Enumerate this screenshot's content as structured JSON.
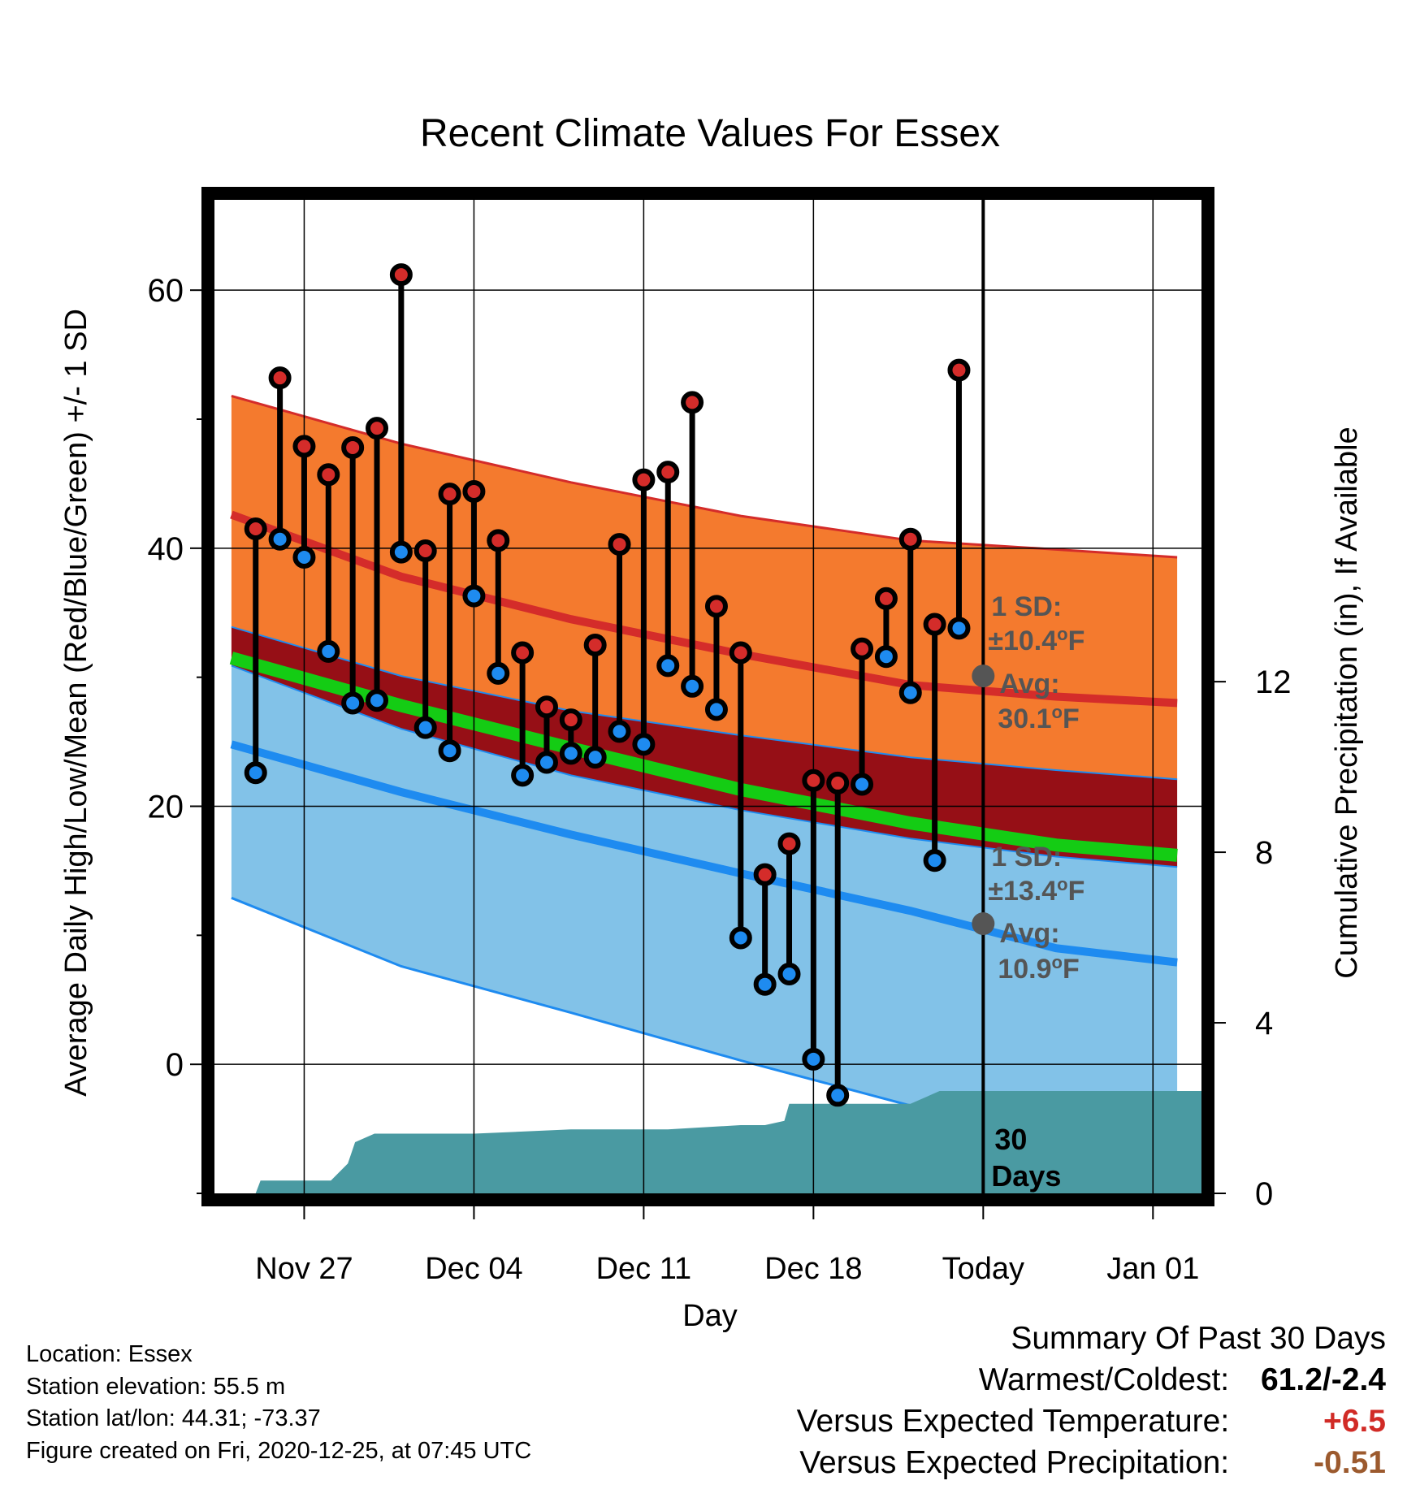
{
  "title": "Recent Climate Values For Essex",
  "chart_data": {
    "type": "line",
    "title": "Recent Climate Values For Essex",
    "xlabel": "Day",
    "ylabel": "Average Daily High/Low/Mean (Red/Blue/Green) +/- 1 SD",
    "y2label": "Cumulative Precipitation (in), If Available",
    "xticks": [
      "Nov 27",
      "Dec 04",
      "Dec 11",
      "Dec 18",
      "Today",
      "Jan 01"
    ],
    "xtick_positions": [
      27,
      34,
      41,
      48,
      55,
      62
    ],
    "x_note": "x = day index; Nov 24 = 24, Dec 01 = 31, Dec 25 (Today) = 55",
    "xlim": [
      23.3,
      64.0
    ],
    "ylim": [
      -10,
      67
    ],
    "yticks": [
      0,
      20,
      40,
      60
    ],
    "y2lim": [
      0,
      23.3
    ],
    "y2ticks": [
      0,
      4,
      8,
      12
    ],
    "grid": true,
    "colors": {
      "high_band": "#f47a2e",
      "high_line": "#d42c2a",
      "overlap_band": "#960f16",
      "mean_line": "#14cc14",
      "low_band": "#82c2e8",
      "low_line": "#1e8bf0",
      "precip": "#4a9aa2",
      "high_marker": "#d42c2a",
      "low_marker": "#1e8bf0",
      "sd_text": "#555555"
    },
    "normals": {
      "x": [
        24,
        31,
        38,
        45,
        52,
        58,
        63
      ],
      "high_avg": [
        42.6,
        37.8,
        34.5,
        31.8,
        29.4,
        28.5,
        28.0
      ],
      "high_upper": [
        51.8,
        48.1,
        45.1,
        42.5,
        40.6,
        39.9,
        39.3
      ],
      "high_lower": [
        33.9,
        30.1,
        27.4,
        25.5,
        23.8,
        22.8,
        22.1
      ],
      "mean_avg": [
        31.5,
        27.8,
        24.5,
        21.3,
        18.7,
        17.0,
        16.2
      ],
      "low_avg": [
        24.8,
        21.1,
        17.8,
        14.8,
        11.9,
        9.0,
        7.9
      ],
      "low_upper": [
        30.9,
        26.0,
        22.4,
        19.7,
        17.5,
        16.1,
        15.3
      ],
      "low_lower": [
        12.9,
        7.6,
        4.0,
        0.3,
        -3.2,
        -5.2,
        -6.2
      ]
    },
    "series": [
      {
        "name": "Daily High",
        "x": [
          25,
          26,
          27,
          28,
          29,
          30,
          31,
          32,
          33,
          34,
          35,
          36,
          37,
          38,
          39,
          40,
          41,
          42,
          43,
          44,
          45,
          46,
          47,
          48,
          49,
          50,
          51,
          52,
          53,
          54
        ],
        "values": [
          41.5,
          53.2,
          47.9,
          45.7,
          47.8,
          49.3,
          61.2,
          39.8,
          44.2,
          44.4,
          40.6,
          31.9,
          27.7,
          26.7,
          32.5,
          40.3,
          45.3,
          45.9,
          51.3,
          35.5,
          31.9,
          14.7,
          17.1,
          22.0,
          21.8,
          32.2,
          36.1,
          40.7,
          34.1,
          53.8
        ]
      },
      {
        "name": "Daily Low",
        "x": [
          25,
          26,
          27,
          28,
          29,
          30,
          31,
          32,
          33,
          34,
          35,
          36,
          37,
          38,
          39,
          40,
          41,
          42,
          43,
          44,
          45,
          46,
          47,
          48,
          49,
          50,
          51,
          52,
          53,
          54
        ],
        "values": [
          22.6,
          40.7,
          39.3,
          32.0,
          28.0,
          28.2,
          39.7,
          26.1,
          24.3,
          36.3,
          30.3,
          22.4,
          23.4,
          24.1,
          23.8,
          25.8,
          24.8,
          30.9,
          29.3,
          27.5,
          9.8,
          6.2,
          7.0,
          0.4,
          -2.4,
          21.7,
          31.6,
          28.8,
          15.8,
          33.8
        ]
      },
      {
        "name": "Cumulative Precipitation",
        "x": [
          24.4,
          25.0,
          25.2,
          26.8,
          27.9,
          28.1,
          28.8,
          29.1,
          29.9,
          30.2,
          34.0,
          38.0,
          42.0,
          45.0,
          46.0,
          46.8,
          47.0,
          52.0,
          52.8,
          53.2,
          64.0
        ],
        "values": [
          0,
          0.0,
          0.3,
          0.3,
          0.3,
          0.3,
          0.7,
          1.2,
          1.4,
          1.4,
          1.4,
          1.5,
          1.5,
          1.6,
          1.6,
          1.7,
          2.1,
          2.1,
          2.3,
          2.4,
          2.4
        ]
      }
    ],
    "annotations": {
      "high_sd_label": "1 SD:",
      "high_sd_value": "±10.4",
      "high_avg_label": "Avg:",
      "high_avg_value": "30.1",
      "high_avg_y": 30.1,
      "low_sd_label": "1 SD:",
      "low_sd_value": "±13.4",
      "low_avg_label": "Avg:",
      "low_avg_value": "10.9",
      "low_avg_y": 10.9,
      "degree": "o",
      "unit": "F",
      "days_number": "30",
      "days_label": "Days"
    }
  },
  "station_info": {
    "location": "Location: Essex",
    "elevation": "Station elevation: 55.5 m",
    "latlon": "Station lat/lon: 44.31; -73.37",
    "created": "Figure created on Fri, 2020-12-25, at 07:45 UTC"
  },
  "summary": {
    "heading": "Summary Of Past 30 Days",
    "warmest_label": "Warmest/Coldest:",
    "warmest_value": "61.2/-2.4",
    "temp_label": "Versus Expected Temperature:",
    "temp_value": "+6.5",
    "temp_color": "#d12b26",
    "precip_label": "Versus Expected Precipitation:",
    "precip_value": "-0.51",
    "precip_color": "#9c5a2e"
  }
}
